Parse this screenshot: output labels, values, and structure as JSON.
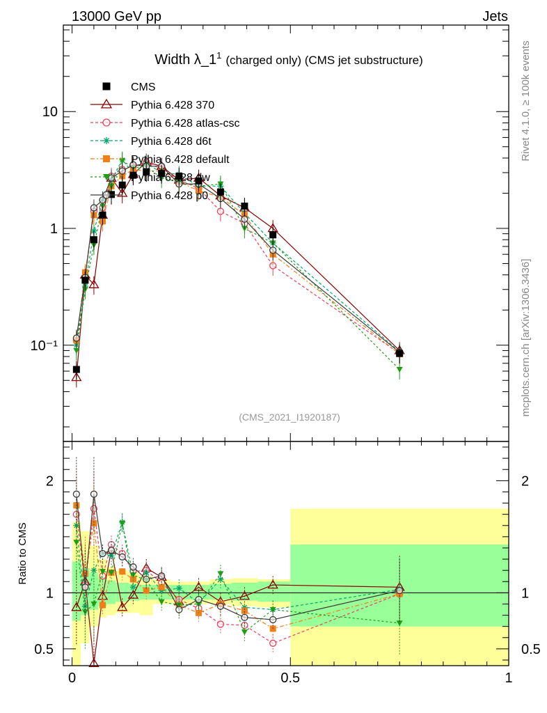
{
  "header": {
    "energy_label": "13000 GeV pp",
    "category_label": "Jets"
  },
  "side": {
    "rivet_label": "Rivet 4.1.0, ≥ 100k events",
    "source_label": "mcplots.cern.ch [arXiv:1306.3436]"
  },
  "chart_data": [
    {
      "type": "line",
      "title": "Width λ_1¹ (charged only) (CMS jet substructure)",
      "title_main": "Width λ_1",
      "title_sup": "1",
      "title_rest": "(charged only) (CMS jet substructure)",
      "analysis_tag": "(CMS_2021_I1920187)",
      "yscale": "log",
      "xlim": [
        -0.02,
        1.0
      ],
      "ylim": [
        0.015,
        55
      ],
      "yticks": [
        0.1,
        1,
        10
      ],
      "ytick_labels": [
        "10⁻¹",
        "1",
        "10"
      ],
      "legend_position": "top-left",
      "x": [
        0.01,
        0.03,
        0.05,
        0.07,
        0.09,
        0.115,
        0.14,
        0.17,
        0.205,
        0.245,
        0.29,
        0.34,
        0.395,
        0.46,
        0.75
      ],
      "series": [
        {
          "name": "CMS",
          "color": "#000000",
          "marker": "square",
          "values": [
            0.062,
            0.36,
            0.8,
            1.3,
            1.95,
            2.35,
            2.85,
            3.05,
            2.95,
            2.8,
            2.55,
            2.05,
            1.55,
            0.88,
            0.085
          ]
        },
        {
          "name": "Pythia 6.428 370",
          "color": "#8b0000",
          "marker": "triangle-open",
          "dash": "",
          "values": [
            0.053,
            0.4,
            0.33,
            1.3,
            2.7,
            2.0,
            2.9,
            3.7,
            3.4,
            2.6,
            2.7,
            1.9,
            1.5,
            1.0,
            0.09
          ]
        },
        {
          "name": "Pythia 6.428 atlas-csc",
          "color": "#e8415a",
          "marker": "circle-open",
          "dash": "4,3",
          "values": [
            0.11,
            0.38,
            1.4,
            1.5,
            2.8,
            3.2,
            3.4,
            3.7,
            3.2,
            2.6,
            2.2,
            1.4,
            1.1,
            0.48,
            0.085
          ]
        },
        {
          "name": "Pythia 6.428 d6t",
          "color": "#00a86b",
          "marker": "star",
          "dash": "4,3",
          "values": [
            0.1,
            0.32,
            0.95,
            1.75,
            2.6,
            3.85,
            3.0,
            3.6,
            3.0,
            2.9,
            2.3,
            2.3,
            1.35,
            0.75,
            0.088
          ]
        },
        {
          "name": "Pythia 6.428 default",
          "color": "#f07f1a",
          "marker": "square",
          "dash": "6,3,2,3",
          "values": [
            0.11,
            0.42,
            1.3,
            1.15,
            2.3,
            2.8,
            3.2,
            3.1,
            3.1,
            2.5,
            2.1,
            1.85,
            1.3,
            0.6,
            0.084
          ]
        },
        {
          "name": "Pythia 6.428 dw",
          "color": "#1f9e16",
          "marker": "triangle-down",
          "dash": "3,3",
          "values": [
            0.09,
            0.3,
            0.72,
            1.55,
            2.3,
            3.8,
            3.3,
            3.4,
            2.7,
            2.5,
            2.3,
            2.4,
            1.0,
            0.75,
            0.062
          ]
        },
        {
          "name": "Pythia 6.428 p0",
          "color": "#3a3a3a",
          "marker": "circle-open",
          "dash": "",
          "values": [
            0.115,
            0.38,
            1.5,
            1.75,
            2.7,
            3.1,
            3.5,
            3.4,
            3.4,
            2.4,
            2.4,
            1.8,
            1.2,
            0.65,
            0.087
          ]
        }
      ]
    },
    {
      "type": "line",
      "ylabel": "Ratio to CMS",
      "xlim": [
        -0.02,
        1.0
      ],
      "ylim": [
        0.35,
        2.35
      ],
      "yticks": [
        0.5,
        1,
        2
      ],
      "ytick_labels": [
        "0.5",
        "1",
        "2"
      ],
      "xticks": [
        0,
        0.5,
        1
      ],
      "xtick_labels": [
        "0",
        "0.5",
        "1"
      ],
      "bands": {
        "bin_edges": [
          0.0,
          0.02,
          0.04,
          0.06,
          0.08,
          0.1,
          0.13,
          0.155,
          0.185,
          0.225,
          0.265,
          0.315,
          0.365,
          0.425,
          0.5,
          1.0
        ],
        "inner": [
          [
            0.75,
            1.28
          ],
          [
            0.8,
            1.22
          ],
          [
            0.85,
            1.18
          ],
          [
            0.88,
            1.14
          ],
          [
            0.9,
            1.11
          ],
          [
            0.92,
            1.09
          ],
          [
            0.93,
            1.08
          ],
          [
            0.94,
            1.07
          ],
          [
            0.94,
            1.07
          ],
          [
            0.94,
            1.07
          ],
          [
            0.94,
            1.07
          ],
          [
            0.94,
            1.08
          ],
          [
            0.93,
            1.09
          ],
          [
            0.92,
            1.1
          ],
          [
            0.7,
            1.43
          ]
        ],
        "outer": [
          [
            0.35,
            1.63
          ],
          [
            0.55,
            1.55
          ],
          [
            0.7,
            1.42
          ],
          [
            0.78,
            1.3
          ],
          [
            0.8,
            1.23
          ],
          [
            0.82,
            1.2
          ],
          [
            0.82,
            1.18
          ],
          [
            0.8,
            1.15
          ],
          [
            0.9,
            1.12
          ],
          [
            0.9,
            1.1
          ],
          [
            0.9,
            1.1
          ],
          [
            0.9,
            1.12
          ],
          [
            0.88,
            1.13
          ],
          [
            0.87,
            1.12
          ],
          [
            0.35,
            1.75
          ]
        ]
      },
      "series": [
        {
          "name": "Pythia 6.428 370",
          "values": [
            0.87,
            1.1,
            0.37,
            0.97,
            1.38,
            0.87,
            0.98,
            1.22,
            1.14,
            0.92,
            1.05,
            0.92,
            0.97,
            1.07,
            1.05
          ]
        },
        {
          "name": "Pythia 6.428 atlas-csc",
          "values": [
            1.7,
            1.07,
            1.75,
            1.15,
            1.43,
            1.35,
            1.19,
            1.2,
            1.09,
            0.94,
            0.86,
            0.72,
            0.71,
            0.55,
            0.99
          ]
        },
        {
          "name": "Pythia 6.428 d6t",
          "values": [
            1.6,
            0.88,
            1.2,
            1.35,
            1.33,
            1.63,
            1.05,
            1.18,
            1.02,
            1.04,
            0.91,
            1.12,
            0.87,
            0.85,
            1.03
          ]
        },
        {
          "name": "Pythia 6.428 default",
          "values": [
            1.78,
            1.17,
            1.62,
            0.89,
            1.18,
            1.19,
            1.12,
            1.02,
            1.05,
            0.89,
            0.82,
            0.9,
            0.84,
            0.68,
            0.99
          ]
        },
        {
          "name": "Pythia 6.428 dw",
          "values": [
            1.45,
            0.83,
            0.9,
            1.19,
            1.18,
            1.62,
            1.16,
            1.11,
            0.92,
            0.89,
            0.9,
            1.17,
            0.65,
            0.85,
            0.73
          ]
        },
        {
          "name": "Pythia 6.428 p0",
          "values": [
            1.88,
            1.05,
            1.88,
            1.35,
            1.38,
            1.32,
            1.23,
            1.12,
            1.15,
            0.85,
            0.94,
            0.88,
            0.78,
            0.76,
            1.02
          ]
        }
      ]
    }
  ]
}
